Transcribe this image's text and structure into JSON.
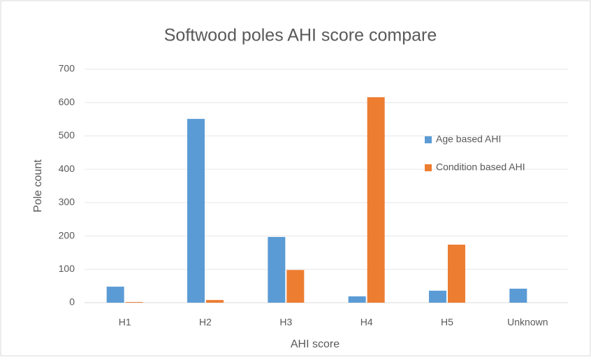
{
  "chart_data": {
    "type": "bar",
    "title": "Softwood poles AHI score compare",
    "x_label": "AHI score",
    "y_label": "Pole count",
    "categories": [
      "H1",
      "H2",
      "H3",
      "H4",
      "H5",
      "Unknown"
    ],
    "series": [
      {
        "name": "Age based AHI",
        "color": "#5b9bd5",
        "values": [
          48,
          551,
          197,
          19,
          36,
          42
        ]
      },
      {
        "name": "Condition based AHI",
        "color": "#ed7d31",
        "values": [
          2,
          8,
          98,
          616,
          174,
          0
        ]
      }
    ],
    "ylim": [
      0,
      700
    ],
    "yticks": [
      0,
      100,
      200,
      300,
      400,
      500,
      600,
      700
    ],
    "grid": true,
    "legend": "right"
  }
}
